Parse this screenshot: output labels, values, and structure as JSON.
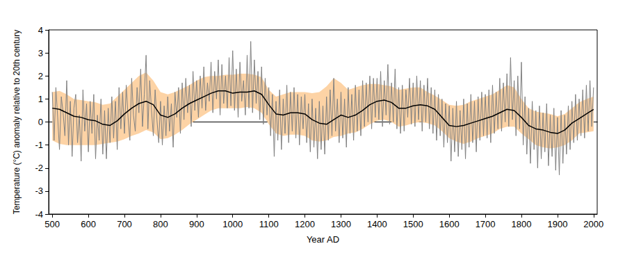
{
  "chart_data": {
    "type": "line",
    "x_label": "Year AD",
    "y_label": "Temperature (°C) anomaly relative to 20th century",
    "xlim": [
      490,
      2010
    ],
    "xticks": [
      500,
      600,
      700,
      800,
      900,
      1000,
      1100,
      1200,
      1300,
      1400,
      1500,
      1600,
      1700,
      1800,
      1900,
      2000
    ],
    "ylim": [
      -4,
      4
    ],
    "yticks": [
      -4,
      -3,
      -2,
      -1,
      0,
      1,
      2,
      3,
      4
    ],
    "grid": false,
    "series": [
      {
        "type": "area",
        "color": "#fdd3a5",
        "x": [
          500,
          520,
          540,
          560,
          580,
          600,
          620,
          640,
          660,
          680,
          700,
          720,
          740,
          760,
          780,
          800,
          820,
          840,
          860,
          880,
          900,
          920,
          940,
          960,
          980,
          1000,
          1020,
          1040,
          1060,
          1080,
          1100,
          1120,
          1140,
          1160,
          1180,
          1200,
          1220,
          1240,
          1260,
          1280,
          1300,
          1320,
          1340,
          1360,
          1380,
          1400,
          1420,
          1440,
          1460,
          1480,
          1500,
          1520,
          1540,
          1560,
          1580,
          1600,
          1620,
          1640,
          1660,
          1680,
          1700,
          1720,
          1740,
          1760,
          1780,
          1800,
          1820,
          1840,
          1860,
          1880,
          1900,
          1920,
          1940,
          1960,
          1980,
          2000
        ],
        "lower": [
          -0.8,
          -0.95,
          -1.0,
          -1.0,
          -1.0,
          -1.0,
          -1.0,
          -0.95,
          -0.9,
          -0.85,
          -0.75,
          -0.6,
          -0.5,
          -0.35,
          -0.45,
          -0.75,
          -0.7,
          -0.55,
          -0.35,
          -0.1,
          0.1,
          0.3,
          0.5,
          0.6,
          0.6,
          0.6,
          0.6,
          0.65,
          0.6,
          0.4,
          -0.1,
          -0.5,
          -0.6,
          -0.55,
          -0.55,
          -0.6,
          -0.8,
          -0.85,
          -0.8,
          -0.65,
          -0.6,
          -0.5,
          -0.45,
          -0.3,
          -0.1,
          0.05,
          0.1,
          0.0,
          -0.2,
          -0.15,
          -0.05,
          0.0,
          -0.05,
          -0.15,
          -0.4,
          -0.7,
          -0.85,
          -0.95,
          -0.85,
          -0.7,
          -0.6,
          -0.5,
          -0.3,
          -0.2,
          -0.2,
          -0.5,
          -0.75,
          -1.0,
          -1.1,
          -1.15,
          -1.1,
          -1.0,
          -0.8,
          -0.5,
          -0.45,
          -0.4
        ],
        "upper": [
          1.3,
          1.35,
          1.2,
          1.0,
          0.95,
          0.9,
          0.85,
          0.75,
          0.8,
          1.1,
          1.4,
          1.7,
          2.0,
          2.15,
          1.8,
          1.3,
          1.2,
          1.3,
          1.45,
          1.6,
          1.8,
          1.95,
          2.0,
          2.0,
          2.05,
          2.05,
          2.1,
          2.1,
          2.05,
          1.95,
          1.4,
          1.1,
          1.2,
          1.3,
          1.3,
          1.3,
          1.25,
          1.3,
          1.55,
          1.9,
          1.7,
          1.4,
          1.5,
          1.6,
          1.65,
          1.65,
          1.6,
          1.55,
          1.4,
          1.45,
          1.5,
          1.5,
          1.3,
          1.15,
          0.95,
          0.75,
          0.7,
          0.75,
          0.9,
          1.0,
          1.1,
          1.2,
          1.4,
          1.6,
          1.5,
          1.0,
          0.6,
          0.45,
          0.4,
          0.35,
          0.25,
          0.35,
          0.6,
          0.85,
          1.0,
          1.1
        ]
      },
      {
        "type": "line",
        "color": "#808080",
        "x": [
          500,
          505,
          510,
          515,
          520,
          525,
          530,
          535,
          540,
          545,
          550,
          555,
          560,
          565,
          570,
          575,
          580,
          585,
          590,
          595,
          600,
          605,
          610,
          615,
          620,
          625,
          630,
          635,
          640,
          645,
          650,
          655,
          660,
          665,
          670,
          675,
          680,
          685,
          690,
          695,
          700,
          705,
          710,
          715,
          720,
          725,
          730,
          735,
          740,
          745,
          750,
          755,
          760,
          765,
          770,
          775,
          780,
          785,
          790,
          795,
          800,
          805,
          810,
          815,
          820,
          825,
          830,
          835,
          840,
          845,
          850,
          855,
          860,
          865,
          870,
          875,
          880,
          885,
          890,
          895,
          900,
          905,
          910,
          915,
          920,
          925,
          930,
          935,
          940,
          945,
          950,
          955,
          960,
          965,
          970,
          975,
          980,
          985,
          990,
          995,
          1000,
          1005,
          1010,
          1015,
          1020,
          1025,
          1030,
          1035,
          1040,
          1045,
          1050,
          1055,
          1060,
          1065,
          1070,
          1075,
          1080,
          1085,
          1090,
          1095,
          1100,
          1105,
          1110,
          1115,
          1120,
          1125,
          1130,
          1135,
          1140,
          1145,
          1150,
          1155,
          1160,
          1165,
          1170,
          1175,
          1180,
          1185,
          1190,
          1195,
          1200,
          1205,
          1210,
          1215,
          1220,
          1225,
          1230,
          1235,
          1240,
          1245,
          1250,
          1255,
          1260,
          1265,
          1270,
          1275,
          1280,
          1285,
          1290,
          1295,
          1300,
          1305,
          1310,
          1315,
          1320,
          1325,
          1330,
          1335,
          1340,
          1345,
          1350,
          1355,
          1360,
          1365,
          1370,
          1375,
          1380,
          1385,
          1390,
          1395,
          1400,
          1405,
          1410,
          1415,
          1420,
          1425,
          1430,
          1435,
          1440,
          1445,
          1450,
          1455,
          1460,
          1465,
          1470,
          1475,
          1480,
          1485,
          1490,
          1495,
          1500,
          1505,
          1510,
          1515,
          1520,
          1525,
          1530,
          1535,
          1540,
          1545,
          1550,
          1555,
          1560,
          1565,
          1570,
          1575,
          1580,
          1585,
          1590,
          1595,
          1600,
          1605,
          1610,
          1615,
          1620,
          1625,
          1630,
          1635,
          1640,
          1645,
          1650,
          1655,
          1660,
          1665,
          1670,
          1675,
          1680,
          1685,
          1690,
          1695,
          1700,
          1705,
          1710,
          1715,
          1720,
          1725,
          1730,
          1735,
          1740,
          1745,
          1750,
          1755,
          1760,
          1765,
          1770,
          1775,
          1780,
          1785,
          1790,
          1795,
          1800,
          1805,
          1810,
          1815,
          1820,
          1825,
          1830,
          1835,
          1840,
          1845,
          1850,
          1855,
          1860,
          1865,
          1870,
          1875,
          1880,
          1885,
          1890,
          1895,
          1900,
          1905,
          1910,
          1915,
          1920,
          1925,
          1930,
          1935,
          1940,
          1945,
          1950,
          1955,
          1960,
          1965,
          1970,
          1975,
          1980,
          1985,
          1990,
          1995,
          2000
        ],
        "values": [
          1.3,
          -0.8,
          1.5,
          0.2,
          -1.2,
          1.1,
          0.4,
          -0.6,
          1.8,
          -1.0,
          0.9,
          -1.5,
          0.6,
          1.2,
          -0.9,
          0.3,
          -1.7,
          1.4,
          -0.4,
          0.8,
          -1.3,
          0.9,
          -0.5,
          1.2,
          -1.6,
          0.3,
          -0.8,
          1.0,
          -1.4,
          0.5,
          -1.6,
          0.6,
          -0.9,
          1.1,
          -0.7,
          0.9,
          -1.2,
          1.5,
          -0.3,
          1.3,
          -0.5,
          1.6,
          0.2,
          -0.8,
          1.9,
          0.3,
          -0.4,
          1.5,
          0.4,
          2.3,
          -0.2,
          1.2,
          2.9,
          -0.3,
          1.8,
          0.5,
          -0.6,
          1.4,
          0.1,
          -0.9,
          0.9,
          -1.0,
          0.7,
          -0.6,
          1.1,
          -0.4,
          0.8,
          -1.1,
          1.3,
          0.2,
          1.5,
          -0.5,
          1.7,
          0.1,
          1.9,
          0.4,
          1.6,
          -0.2,
          2.2,
          0.5,
          1.8,
          0.2,
          2.0,
          0.6,
          2.4,
          0.5,
          1.7,
          0.9,
          2.6,
          0.4,
          2.2,
          1.0,
          2.7,
          0.3,
          2.5,
          0.8,
          2.0,
          0.6,
          2.8,
          0.7,
          3.1,
          0.5,
          2.3,
          0.2,
          2.6,
          0.9,
          1.8,
          0.3,
          2.9,
          0.6,
          3.5,
          0.4,
          2.7,
          0.8,
          2.2,
          0.1,
          2.4,
          -0.1,
          1.9,
          0.3,
          1.5,
          -0.6,
          1.2,
          -1.5,
          0.9,
          -0.8,
          1.4,
          -1.2,
          1.0,
          -0.5,
          1.6,
          -0.9,
          1.3,
          -0.4,
          1.5,
          -0.7,
          1.2,
          -1.0,
          1.1,
          -0.3,
          1.2,
          -0.9,
          0.8,
          -1.3,
          1.0,
          -1.1,
          0.6,
          -1.6,
          0.9,
          -1.2,
          0.7,
          -1.4,
          1.1,
          -0.8,
          1.4,
          -0.6,
          1.9,
          -0.4,
          1.0,
          -0.9,
          1.3,
          -0.7,
          1.0,
          -1.1,
          1.5,
          -0.5,
          1.2,
          -0.8,
          1.6,
          -0.4,
          1.4,
          -0.6,
          1.8,
          -0.2,
          1.7,
          0.0,
          2.0,
          -0.3,
          1.9,
          0.2,
          1.9,
          0.1,
          2.2,
          -0.2,
          1.8,
          0.3,
          2.5,
          -0.1,
          1.7,
          0.0,
          2.3,
          -0.3,
          1.5,
          -0.5,
          1.6,
          -0.4,
          1.4,
          0.2,
          1.9,
          -0.1,
          1.7,
          -0.2,
          2.0,
          0.1,
          1.8,
          -0.4,
          1.6,
          0.0,
          1.9,
          -0.3,
          1.5,
          -0.5,
          1.4,
          -0.8,
          1.2,
          -0.6,
          1.0,
          -1.1,
          0.8,
          -0.9,
          0.7,
          -1.7,
          0.6,
          -1.3,
          0.9,
          -1.5,
          0.5,
          -1.2,
          1.0,
          -1.6,
          0.8,
          -1.1,
          1.2,
          -0.9,
          0.9,
          -1.3,
          1.1,
          -0.8,
          1.3,
          -0.6,
          1.2,
          -0.7,
          1.4,
          -0.9,
          1.6,
          -0.5,
          1.3,
          -0.3,
          1.9,
          -0.4,
          1.7,
          0.0,
          2.1,
          -0.2,
          2.8,
          0.1,
          1.8,
          -0.6,
          2.0,
          -0.3,
          2.6,
          -1.0,
          1.1,
          -1.4,
          0.6,
          -1.8,
          0.9,
          -1.2,
          0.5,
          -2.0,
          0.7,
          -1.6,
          0.4,
          -1.3,
          0.8,
          -1.9,
          0.3,
          -1.5,
          0.6,
          -2.1,
          0.2,
          -2.3,
          0.5,
          -1.8,
          0.3,
          -1.4,
          0.7,
          -1.2,
          0.9,
          -0.9,
          1.2,
          -0.8,
          1.0,
          -0.6,
          1.4,
          -0.7,
          1.6,
          -0.4,
          1.8,
          -0.2,
          1.5
        ]
      },
      {
        "type": "line",
        "color": "#000000",
        "x": [
          500,
          520,
          540,
          560,
          580,
          600,
          620,
          640,
          660,
          680,
          700,
          720,
          740,
          760,
          780,
          800,
          820,
          840,
          860,
          880,
          900,
          920,
          940,
          960,
          980,
          1000,
          1020,
          1040,
          1060,
          1080,
          1100,
          1120,
          1140,
          1160,
          1180,
          1200,
          1220,
          1240,
          1260,
          1280,
          1300,
          1320,
          1340,
          1360,
          1380,
          1400,
          1420,
          1440,
          1460,
          1480,
          1500,
          1520,
          1540,
          1560,
          1580,
          1600,
          1620,
          1640,
          1660,
          1680,
          1700,
          1720,
          1740,
          1760,
          1780,
          1800,
          1820,
          1840,
          1860,
          1880,
          1900,
          1920,
          1940,
          1960,
          1980,
          2000
        ],
        "values": [
          0.6,
          0.55,
          0.4,
          0.25,
          0.2,
          0.1,
          0.05,
          -0.1,
          -0.15,
          0.05,
          0.35,
          0.6,
          0.8,
          0.9,
          0.75,
          0.3,
          0.2,
          0.35,
          0.6,
          0.8,
          0.95,
          1.1,
          1.25,
          1.35,
          1.35,
          1.25,
          1.3,
          1.3,
          1.35,
          1.2,
          0.75,
          0.35,
          0.3,
          0.4,
          0.4,
          0.35,
          0.1,
          -0.05,
          -0.1,
          0.1,
          0.3,
          0.2,
          0.3,
          0.5,
          0.75,
          0.9,
          0.95,
          0.85,
          0.6,
          0.6,
          0.7,
          0.75,
          0.7,
          0.55,
          0.2,
          -0.15,
          -0.2,
          -0.15,
          -0.05,
          0.05,
          0.15,
          0.25,
          0.4,
          0.55,
          0.5,
          0.2,
          -0.15,
          -0.3,
          -0.35,
          -0.45,
          -0.5,
          -0.35,
          -0.05,
          0.15,
          0.35,
          0.55
        ]
      }
    ]
  }
}
